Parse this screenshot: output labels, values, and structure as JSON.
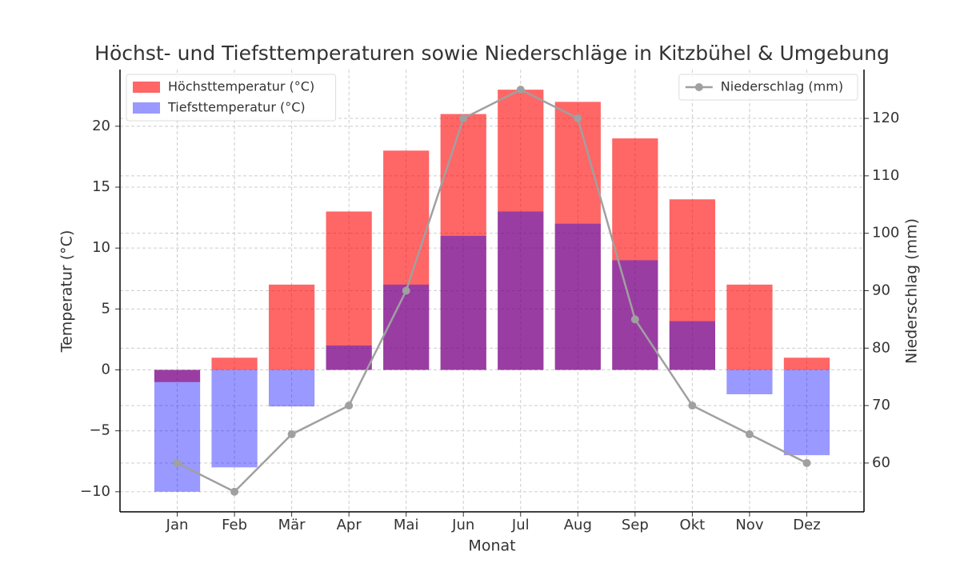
{
  "chart_data": {
    "type": "bar",
    "title": "Höchst- und Tiefsttemperaturen sowie Niederschläge in Kitzbühel & Umgebung",
    "x_label": "Monat",
    "y_label": "Temperatur (°C)",
    "y2_label": "Niederschlag (mm)",
    "categories": [
      "Jan",
      "Feb",
      "Mär",
      "Apr",
      "Mai",
      "Jun",
      "Jul",
      "Aug",
      "Sep",
      "Okt",
      "Nov",
      "Dez"
    ],
    "series": [
      {
        "name": "Höchsttemperatur (°C)",
        "type": "bar",
        "color": "#ff0000",
        "alpha": 0.6,
        "values": [
          -1,
          1,
          7,
          13,
          18,
          21,
          23,
          22,
          19,
          14,
          7,
          1
        ]
      },
      {
        "name": "Tiefsttemperatur (°C)",
        "type": "bar",
        "color": "#0000ff",
        "alpha": 0.4,
        "values": [
          -10,
          -8,
          -3,
          2,
          7,
          11,
          13,
          12,
          9,
          4,
          -2,
          -7
        ]
      },
      {
        "name": "Niederschlag (mm)",
        "type": "line",
        "axis": "y2",
        "color": "#a0a0a0",
        "values": [
          60,
          55,
          65,
          70,
          90,
          120,
          125,
          120,
          85,
          70,
          65,
          60
        ]
      }
    ],
    "ylim": [
      -11.65,
      24.65
    ],
    "yticks": [
      {
        "value": -10,
        "label": "−10"
      },
      {
        "value": -5,
        "label": "−5"
      },
      0,
      5,
      10,
      15,
      20
    ],
    "y2lim": [
      51.5,
      128.5
    ],
    "y2ticks": [
      60,
      70,
      80,
      90,
      100,
      110,
      120
    ],
    "grid": true,
    "legend": "upper left",
    "legend2": "upper right"
  }
}
